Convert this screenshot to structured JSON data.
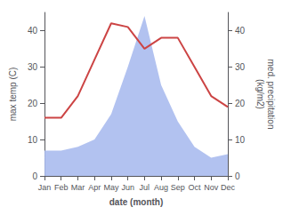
{
  "chart_data": {
    "type": "line",
    "categories": [
      "Jan",
      "Feb",
      "Mar",
      "Apr",
      "May",
      "Jun",
      "Jul",
      "Aug",
      "Sep",
      "Oct",
      "Nov",
      "Dec"
    ],
    "series": [
      {
        "type": "area",
        "color": "#aabbee",
        "values": [
          7,
          7,
          8,
          10,
          17,
          30,
          44,
          25,
          15,
          8,
          5,
          6
        ]
      },
      {
        "type": "line",
        "color": "#cc4444",
        "values": [
          16,
          16,
          22,
          32,
          42,
          41,
          35,
          38,
          38,
          30,
          22,
          19
        ]
      }
    ],
    "xlabel": "date (month)",
    "ylabel": "max temp (C)",
    "y2label": "med. precipitation\n(kg/m2)",
    "ylim": [
      0,
      45
    ],
    "yticks": [
      0,
      10,
      20,
      30,
      40
    ],
    "y2lim": [
      0,
      45
    ],
    "y2ticks": [
      0,
      10,
      20,
      30,
      40
    ],
    "grid": false
  }
}
